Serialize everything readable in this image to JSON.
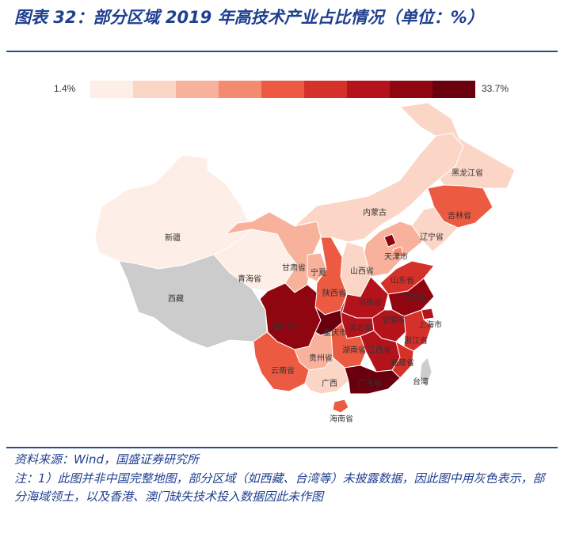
{
  "title": "图表 32：部分区域 2019 年高技术产业占比情况（单位：%）",
  "legend": {
    "min_label": "1.4%",
    "max_label": "33.7%",
    "colors": [
      "#fdeee8",
      "#fbd5c6",
      "#f8b29c",
      "#f48a6f",
      "#ec5a42",
      "#d6302a",
      "#b5131c",
      "#900610",
      "#6a000d"
    ]
  },
  "gray_color": "#cccccc",
  "provinces": [
    {
      "key": "xinjiang",
      "label": "新疆"
    },
    {
      "key": "xizang",
      "label": "西藏"
    },
    {
      "key": "qinghai",
      "label": "青海省"
    },
    {
      "key": "gansu",
      "label": "甘肃省"
    },
    {
      "key": "ningxia",
      "label": "宁夏"
    },
    {
      "key": "neimenggu",
      "label": "内蒙古"
    },
    {
      "key": "heilongjiang",
      "label": "黑龙江省"
    },
    {
      "key": "jilin",
      "label": "吉林省"
    },
    {
      "key": "liaoning",
      "label": "辽宁省"
    },
    {
      "key": "tianjin",
      "label": "天津市"
    },
    {
      "key": "shanxi",
      "label": "山西省"
    },
    {
      "key": "shandong",
      "label": "山东省"
    },
    {
      "key": "shaanxi",
      "label": "陕西省"
    },
    {
      "key": "henan",
      "label": "河南省"
    },
    {
      "key": "jiangsu",
      "label": "江苏省"
    },
    {
      "key": "anhui",
      "label": "安徽省"
    },
    {
      "key": "shanghai",
      "label": "上海市"
    },
    {
      "key": "sichuan",
      "label": "四川省"
    },
    {
      "key": "chongqing",
      "label": "重庆市"
    },
    {
      "key": "hubei",
      "label": "湖北省"
    },
    {
      "key": "zhejiang",
      "label": "浙江省"
    },
    {
      "key": "hunan",
      "label": "湖南省"
    },
    {
      "key": "jiangxi",
      "label": "江西省"
    },
    {
      "key": "guizhou",
      "label": "贵州省"
    },
    {
      "key": "fujian",
      "label": "福建省"
    },
    {
      "key": "yunnan",
      "label": "云南省"
    },
    {
      "key": "guangxi",
      "label": "广西"
    },
    {
      "key": "guangdong",
      "label": "广东省"
    },
    {
      "key": "taiwan",
      "label": "台湾"
    },
    {
      "key": "hainan",
      "label": "海南省"
    }
  ],
  "source": "资料来源：Wind，国盛证券研究所",
  "note": "注：1）此图并非中国完整地图，部分区域（如西藏、台湾等）未披露数据，因此图中用灰色表示，部分海域领土，以及香港、澳门缺失技术投入数据因此未作图"
}
